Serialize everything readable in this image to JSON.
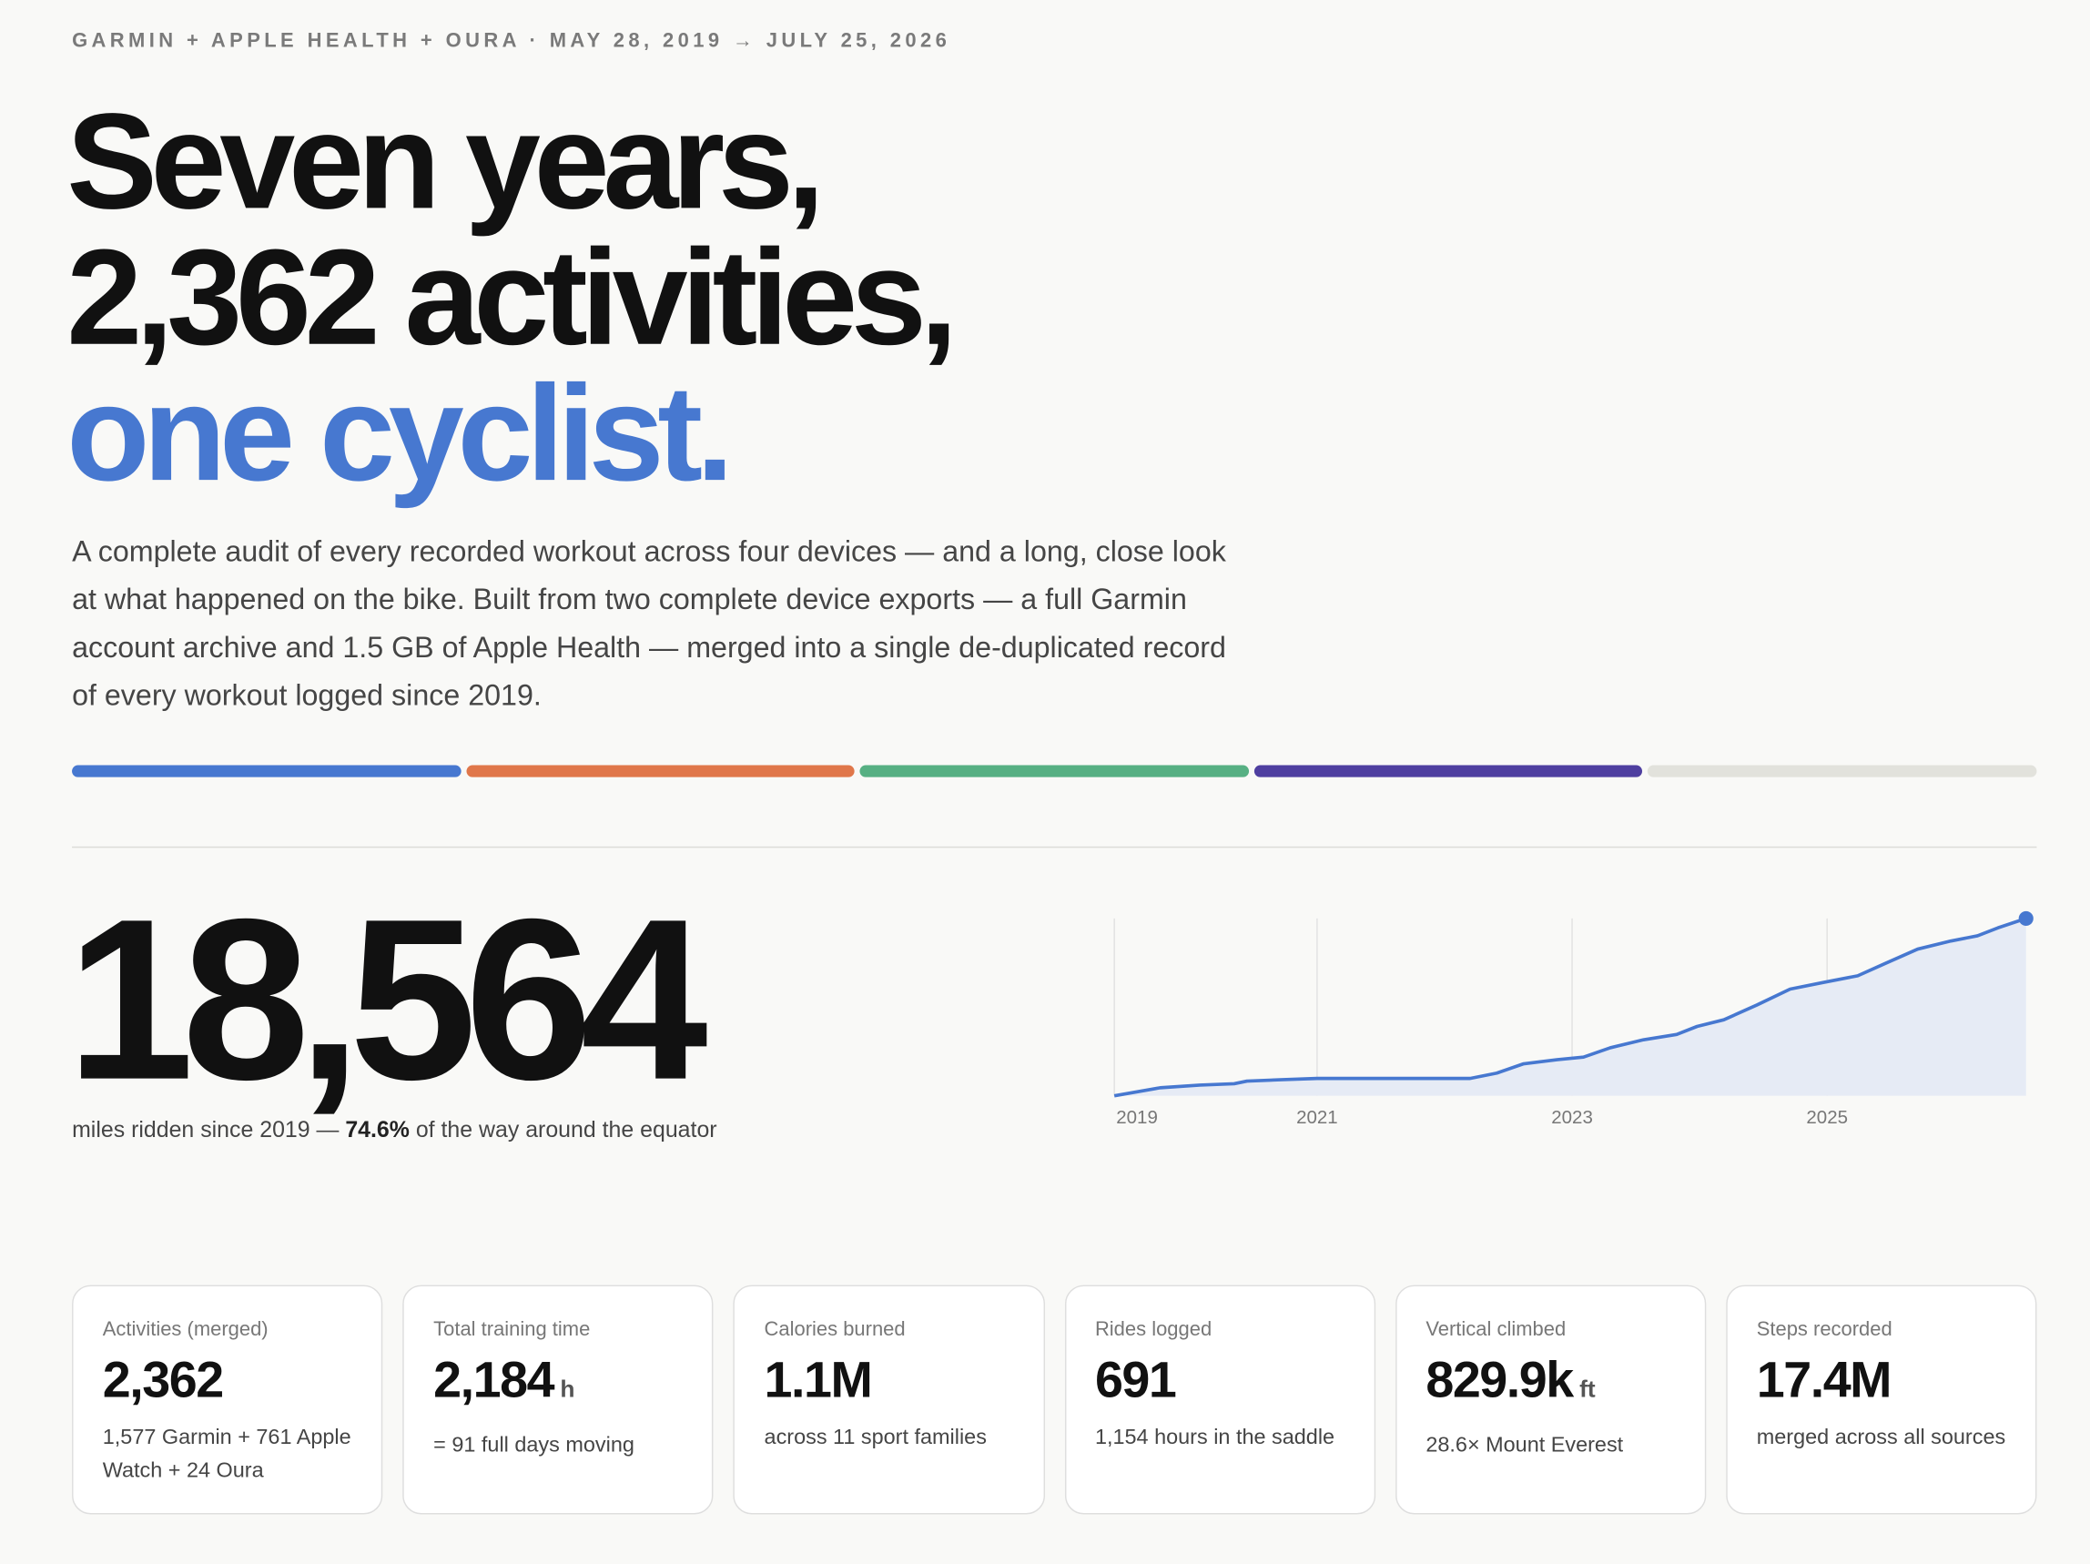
{
  "header": {
    "eyebrow": "GARMIN + APPLE HEALTH + OURA · MAY 28, 2019 → JULY 25, 2026",
    "headline": [
      "Seven years,",
      "2,362 activities,",
      "one cyclist."
    ],
    "lede": "A complete audit of every recorded workout across four devices — and a long, close look at what happened on the bike. Built from two complete device exports — a full Garmin account archive and 1.5 GB of Apple Health — merged into a single de-duplicated record of every workout logged since 2019."
  },
  "hero": {
    "number": "18,564",
    "caption": [
      "miles ridden since 2019 — ",
      "74.6%",
      " of the way around the equator"
    ]
  },
  "chart_data": {
    "type": "area",
    "color": "#4778d0",
    "fill": "#e6ebf5",
    "grid": true,
    "x": [
      2019.41,
      2019.77,
      2020.08,
      2020.35,
      2020.45,
      2020.71,
      2021.0,
      2022.2,
      2022.41,
      2022.62,
      2022.88,
      2023.09,
      2023.3,
      2023.56,
      2023.82,
      2023.98,
      2024.19,
      2024.45,
      2024.71,
      2024.97,
      2025.24,
      2025.45,
      2025.71,
      2025.97,
      2026.18,
      2026.34,
      2026.56
    ],
    "values": [
      0,
      840,
      1120,
      1260,
      1540,
      1680,
      1820,
      1820,
      2370,
      3350,
      3770,
      4050,
      5030,
      5860,
      6420,
      7260,
      7960,
      9500,
      11170,
      11870,
      12560,
      13820,
      15360,
      16200,
      16750,
      17590,
      18564
    ],
    "xlim": [
      2019.41,
      2026.56
    ],
    "xticks": [
      {
        "value": 2019.41,
        "label": "2019"
      },
      2021,
      2023,
      2025
    ],
    "ylim": [
      0,
      18564
    ]
  },
  "cards": [
    {
      "label": "Activities (merged)",
      "value": "2,362",
      "note": "1,577 Garmin + 761 Apple Watch + 24 Oura"
    },
    {
      "label": "Total training time",
      "value": "2,184",
      "unit": "h",
      "note": "= 91 full days moving"
    },
    {
      "label": "Calories burned",
      "value": "1.1M",
      "note": "across 11 sport families"
    },
    {
      "label": "Rides logged",
      "value": "691",
      "note": "1,154 hours in the saddle"
    },
    {
      "label": "Vertical climbed",
      "value": "829.9k",
      "unit": "ft",
      "note": "28.6× Mount Everest"
    },
    {
      "label": "Steps recorded",
      "value": "17.4M",
      "note": "merged across all sources"
    }
  ]
}
